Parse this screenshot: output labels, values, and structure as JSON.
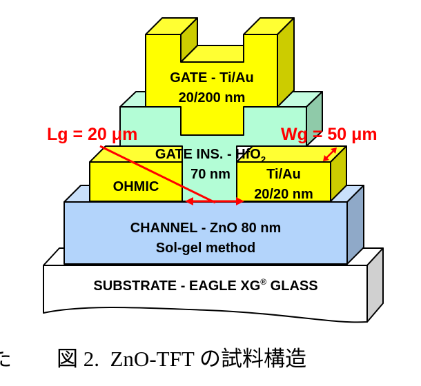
{
  "diagram": {
    "gate": {
      "line1": "GATE - Ti/Au",
      "line2": "20/200 nm"
    },
    "insulator": {
      "line1_main": "GATE INS. - HfO",
      "line1_sub": "2",
      "line2": "70 nm"
    },
    "ohmic_left": {
      "label": "OHMIC"
    },
    "ohmic_right": {
      "line1": "Ti/Au",
      "line2": "20/20 nm"
    },
    "channel": {
      "line1": "CHANNEL - ZnO 80 nm",
      "line2": "Sol-gel method"
    },
    "substrate": {
      "label_main": "SUBSTRATE - EAGLE XG",
      "label_sup": "®",
      "label_end": " GLASS"
    },
    "dimensions": {
      "lg": "Lg = 20 μm",
      "wg": "Wg = 50 μm"
    },
    "colors": {
      "gate": "#ffff00",
      "insulator": "#b3fdd6",
      "channel": "#b3d4fb",
      "substrate": "#ffffff",
      "annotation": "#ff0000"
    }
  },
  "caption": {
    "fragment": "た",
    "text": "図 2.  ZnO-TFT の試料構造"
  }
}
